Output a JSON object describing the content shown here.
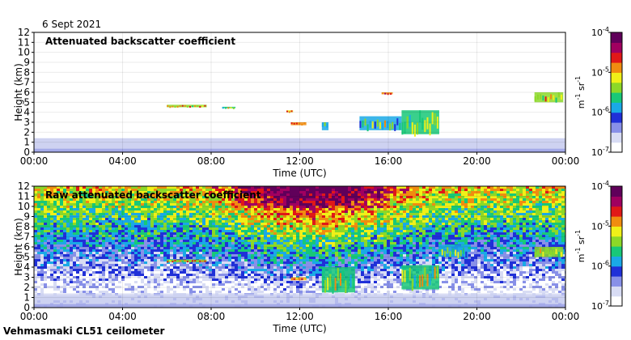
{
  "header": {
    "date": "6 Sept 2021"
  },
  "footer": {
    "site": "Vehmasmaki CL51 ceilometer"
  },
  "colors": {
    "plot_bg": "#ffffff",
    "low_noise": "#c9cdf0",
    "colormap": [
      "#ffffff",
      "#d8dcf4",
      "#8890e8",
      "#2030d8",
      "#1aa9e6",
      "#18c878",
      "#8cd828",
      "#f0f018",
      "#f08c10",
      "#e01818",
      "#a00060",
      "#60005a"
    ]
  },
  "chart_data": [
    {
      "type": "heatmap",
      "title": "Attenuated backscatter coefficient",
      "xlabel": "Time (UTC)",
      "ylabel": "Height (km)",
      "xticks": [
        "00:00",
        "04:00",
        "08:00",
        "12:00",
        "16:00",
        "20:00",
        "00:00"
      ],
      "xlim_hours": [
        0,
        24
      ],
      "ylim_km": [
        0,
        12
      ],
      "yticks": [
        0,
        1,
        2,
        3,
        4,
        5,
        6,
        7,
        8,
        9,
        10,
        11,
        12
      ],
      "grid": true,
      "noise_filtered": true,
      "colorbar": {
        "unit_base": "m",
        "unit_exp1": "-1",
        "unit_mid": "sr",
        "unit_exp2": "-1",
        "tick_labels": [
          {
            "base": "10",
            "exp": "-4"
          },
          {
            "base": "10",
            "exp": "-5"
          },
          {
            "base": "10",
            "exp": "-6"
          },
          {
            "base": "10",
            "exp": "-7"
          }
        ],
        "log_range": [
          -7,
          -4
        ]
      },
      "features": [
        {
          "name": "boundary layer",
          "t0": 0,
          "t1": 24,
          "h0": 0,
          "h1": 1.4,
          "log_b": -6.6
        },
        {
          "name": "cloud layer",
          "t0": 6.0,
          "t1": 7.8,
          "h0": 4.5,
          "h1": 4.75,
          "log_b": -5.3
        },
        {
          "name": "cloud layer",
          "t0": 8.5,
          "t1": 9.1,
          "h0": 4.4,
          "h1": 4.55,
          "log_b": -5.6
        },
        {
          "name": "cloud layer",
          "t0": 11.4,
          "t1": 11.7,
          "h0": 4.0,
          "h1": 4.2,
          "log_b": -5.2
        },
        {
          "name": "cloud layer",
          "t0": 11.6,
          "t1": 12.3,
          "h0": 2.7,
          "h1": 3.0,
          "log_b": -5.0
        },
        {
          "name": "cloud layer",
          "t0": 13.0,
          "t1": 13.3,
          "h0": 2.2,
          "h1": 3.0,
          "log_b": -5.8
        },
        {
          "name": "cloud layer",
          "t0": 15.7,
          "t1": 16.2,
          "h0": 5.8,
          "h1": 6.0,
          "log_b": -5.0
        },
        {
          "name": "cloud layer",
          "t0": 14.7,
          "t1": 16.6,
          "h0": 2.2,
          "h1": 3.6,
          "log_b": -5.8
        },
        {
          "name": "cloud layer",
          "t0": 16.6,
          "t1": 18.3,
          "h0": 1.8,
          "h1": 4.2,
          "log_b": -5.6
        },
        {
          "name": "cloud layer",
          "t0": 22.6,
          "t1": 23.9,
          "h0": 5.0,
          "h1": 6.0,
          "log_b": -5.4
        }
      ]
    },
    {
      "type": "heatmap",
      "title": "Raw attenuated backscatter coefficient",
      "xlabel": "Time (UTC)",
      "ylabel": "Height (km)",
      "xticks": [
        "00:00",
        "04:00",
        "08:00",
        "12:00",
        "16:00",
        "20:00",
        "00:00"
      ],
      "xlim_hours": [
        0,
        24
      ],
      "ylim_km": [
        0,
        12
      ],
      "yticks": [
        0,
        1,
        2,
        3,
        4,
        5,
        6,
        7,
        8,
        9,
        10,
        11,
        12
      ],
      "grid": true,
      "noise_filtered": false,
      "colorbar": {
        "unit_base": "m",
        "unit_exp1": "-1",
        "unit_mid": "sr",
        "unit_exp2": "-1",
        "tick_labels": [
          {
            "base": "10",
            "exp": "-4"
          },
          {
            "base": "10",
            "exp": "-5"
          },
          {
            "base": "10",
            "exp": "-6"
          },
          {
            "base": "10",
            "exp": "-7"
          }
        ],
        "log_range": [
          -7,
          -4
        ]
      },
      "features": [
        {
          "name": "boundary layer",
          "t0": 0,
          "t1": 24,
          "h0": 0,
          "h1": 1.4,
          "log_b": -6.6
        },
        {
          "name": "cloud layer",
          "t0": 6.0,
          "t1": 7.8,
          "h0": 4.5,
          "h1": 4.75,
          "log_b": -5.3
        },
        {
          "name": "cloud layer",
          "t0": 11.6,
          "t1": 12.3,
          "h0": 2.7,
          "h1": 3.0,
          "log_b": -5.0
        },
        {
          "name": "cloud layer",
          "t0": 13.0,
          "t1": 14.5,
          "h0": 1.5,
          "h1": 4.0,
          "log_b": -5.6
        },
        {
          "name": "cloud layer",
          "t0": 16.6,
          "t1": 18.3,
          "h0": 1.8,
          "h1": 4.2,
          "log_b": -5.6
        },
        {
          "name": "cloud layer",
          "t0": 18.4,
          "t1": 19.6,
          "h0": 5.0,
          "h1": 6.2,
          "log_b": -5.8
        },
        {
          "name": "cloud layer",
          "t0": 22.6,
          "t1": 23.9,
          "h0": 5.0,
          "h1": 6.0,
          "log_b": -5.4
        }
      ]
    }
  ]
}
